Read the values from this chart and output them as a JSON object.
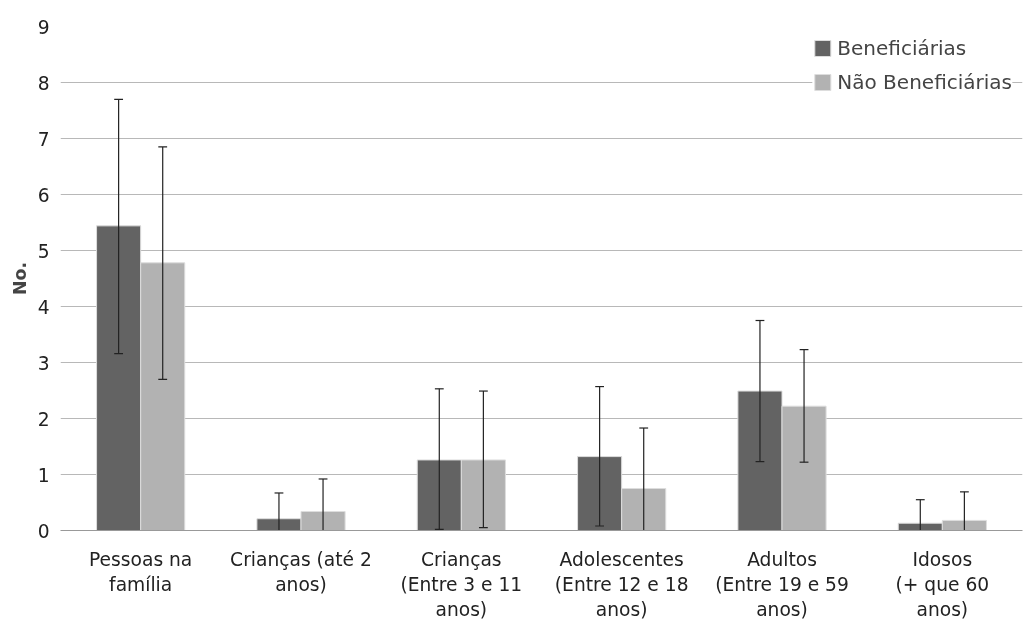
{
  "chart_data": {
    "type": "bar",
    "ylabel": "No.",
    "categories": [
      "Pessoas na\nfamília",
      "Crianças (até 2\nanos)",
      "Crianças\n(Entre 3 e 11\nanos)",
      "Adolescentes\n(Entre 12 e 18\nanos)",
      "Adultos\n(Entre 19 e 59\nanos)",
      "Idosos\n(+ que 60\nanos)"
    ],
    "series": [
      {
        "name": "Beneficiárias",
        "color": "#636363",
        "values": [
          5.44,
          0.21,
          1.26,
          1.32,
          2.49,
          0.13
        ],
        "errors": [
          [
            3.16,
            7.7
          ],
          [
            0,
            0.67
          ],
          [
            0.02,
            2.53
          ],
          [
            0.08,
            2.57
          ],
          [
            1.23,
            3.75
          ],
          [
            0,
            0.55
          ]
        ]
      },
      {
        "name": "Não Beneficiárias",
        "color": "#b2b2b2",
        "values": [
          4.78,
          0.34,
          1.26,
          0.75,
          2.22,
          0.18
        ],
        "errors": [
          [
            2.7,
            6.85
          ],
          [
            0,
            0.92
          ],
          [
            0.05,
            2.49
          ],
          [
            0,
            1.83
          ],
          [
            1.22,
            3.23
          ],
          [
            0,
            0.69
          ]
        ]
      }
    ],
    "ylim": [
      0,
      9
    ],
    "yticks": [
      0,
      1,
      2,
      3,
      4,
      5,
      6,
      7,
      8,
      9
    ],
    "grid": "y",
    "legend": "top right"
  }
}
